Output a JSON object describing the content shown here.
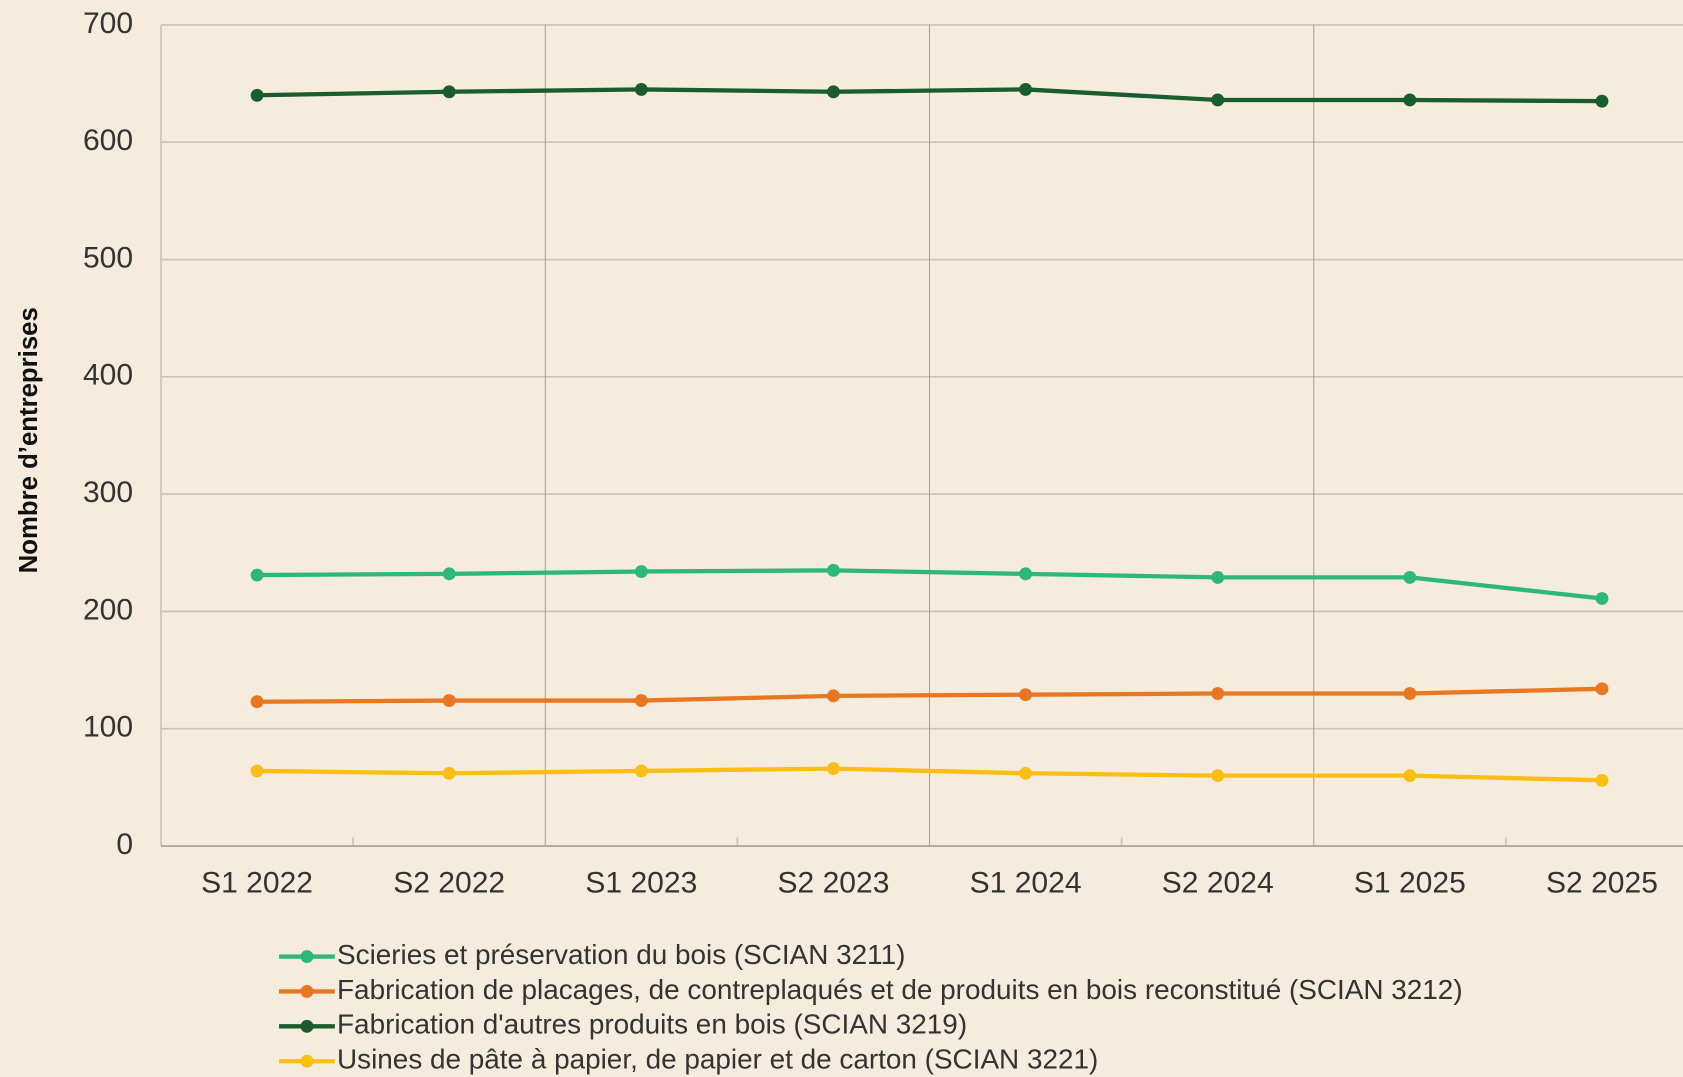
{
  "chart_data": {
    "type": "line",
    "y_label": "Nombre d’entreprises",
    "categories": [
      "S1 2022",
      "S2 2022",
      "S1 2023",
      "S2 2023",
      "S1 2024",
      "S2 2024",
      "S1 2025",
      "S2 2025"
    ],
    "series": [
      {
        "name": "Scieries et préservation du bois (SCIAN 3211)",
        "color": "#2db87a",
        "values": [
          231,
          232,
          234,
          235,
          232,
          229,
          229,
          211
        ]
      },
      {
        "name": "Fabrication de placages, de contreplaqués et de produits en bois reconstitué (SCIAN 3212)",
        "color": "#e87722",
        "values": [
          123,
          124,
          124,
          128,
          129,
          130,
          130,
          134
        ]
      },
      {
        "name": "Fabrication d'autres produits en bois (SCIAN 3219)",
        "color": "#1a5c2e",
        "values": [
          640,
          643,
          645,
          643,
          645,
          636,
          636,
          635
        ]
      },
      {
        "name": "Usines de pâte à papier, de papier et de carton (SCIAN 3221)",
        "color": "#fbbf14",
        "values": [
          64,
          62,
          64,
          66,
          62,
          60,
          60,
          56
        ]
      }
    ],
    "ylim": [
      0,
      700
    ],
    "yticks": [
      0,
      100,
      200,
      300,
      400,
      500,
      600,
      700
    ],
    "grid": true
  }
}
